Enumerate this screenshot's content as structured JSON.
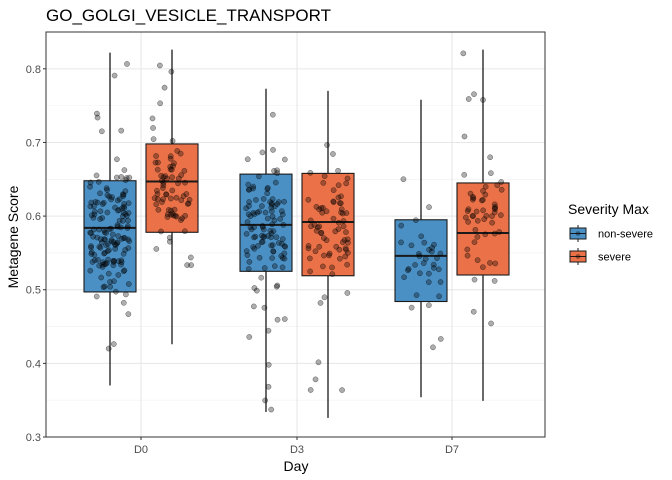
{
  "chart_data": {
    "type": "box",
    "title": "GO_GOLGI_VESICLE_TRANSPORT",
    "xlabel": "Day",
    "ylabel": "Metagene Score",
    "categories": [
      "D0",
      "D3",
      "D7"
    ],
    "ylim": [
      0.3,
      0.85
    ],
    "yticks": [
      "0.3",
      "0.4",
      "0.5",
      "0.6",
      "0.7",
      "0.8"
    ],
    "grid": true,
    "legend": {
      "title": "Severity Max",
      "position": "right"
    },
    "series": [
      {
        "name": "non-severe",
        "color": "#4b90c4",
        "boxes": [
          {
            "category": "D0",
            "min": 0.37,
            "q1": 0.497,
            "median": 0.584,
            "q3": 0.648,
            "max": 0.822
          },
          {
            "category": "D3",
            "min": 0.334,
            "q1": 0.525,
            "median": 0.588,
            "q3": 0.657,
            "max": 0.773
          },
          {
            "category": "D7",
            "min": 0.354,
            "q1": 0.484,
            "median": 0.546,
            "q3": 0.595,
            "max": 0.758
          }
        ]
      },
      {
        "name": "severe",
        "color": "#ea7148",
        "boxes": [
          {
            "category": "D0",
            "min": 0.426,
            "q1": 0.578,
            "median": 0.647,
            "q3": 0.698,
            "max": 0.826
          },
          {
            "category": "D3",
            "min": 0.326,
            "q1": 0.519,
            "median": 0.592,
            "q3": 0.658,
            "max": 0.77
          },
          {
            "category": "D7",
            "min": 0.349,
            "q1": 0.52,
            "median": 0.577,
            "q3": 0.645,
            "max": 0.826
          }
        ]
      }
    ]
  }
}
